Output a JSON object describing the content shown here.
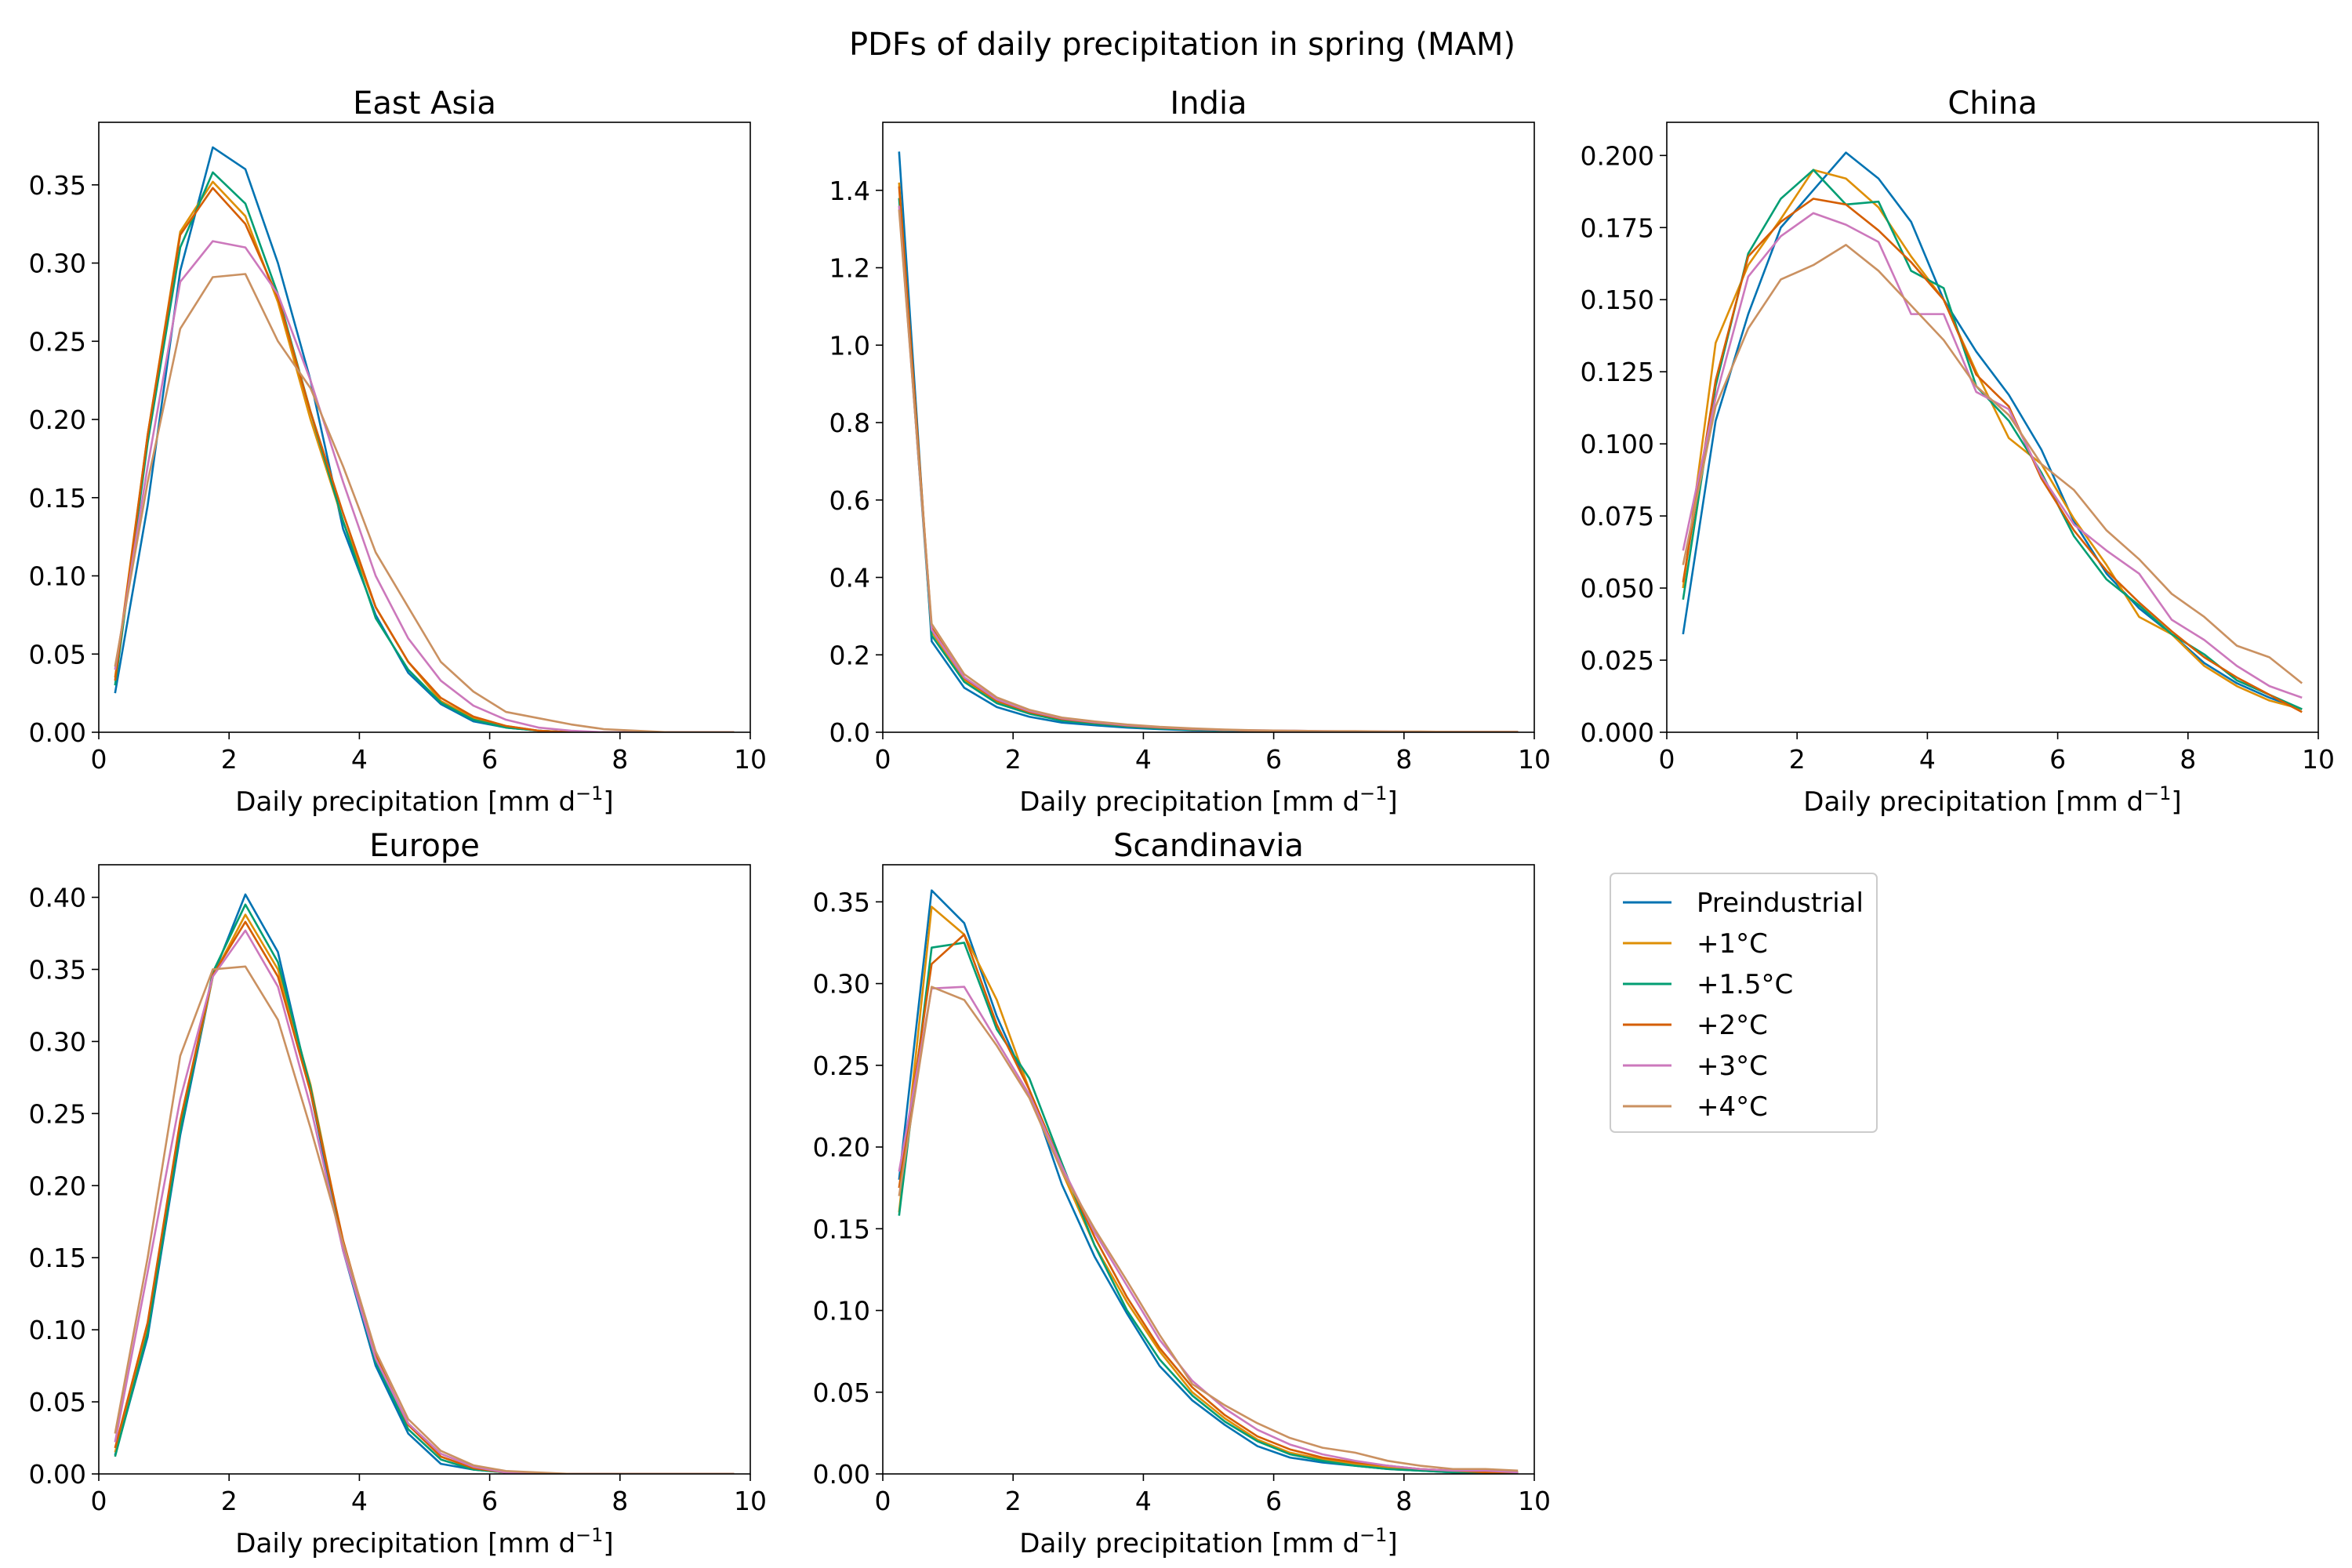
{
  "figure": {
    "title": "PDFs of daily precipitation in spring (MAM)"
  },
  "legend": {
    "placement": "empty-bottom-right-slot",
    "entries": [
      {
        "name": "Preindustrial",
        "color": "#0173b2"
      },
      {
        "name": "+1°C",
        "color": "#de8f05"
      },
      {
        "name": "+1.5°C",
        "color": "#029e73"
      },
      {
        "name": "+2°C",
        "color": "#d55e00"
      },
      {
        "name": "+3°C",
        "color": "#cc78bc"
      },
      {
        "name": "+4°C",
        "color": "#ca9161"
      }
    ]
  },
  "chart_data": [
    {
      "type": "line",
      "title": "East Asia",
      "xlabel": "Daily precipitation [mm d",
      "xlabel_sup": "−1",
      "xlabel_end": "]",
      "ylabel": "",
      "xlim": [
        0,
        10
      ],
      "ylim": [
        0,
        0.39
      ],
      "xticks": [
        "0",
        "2",
        "4",
        "6",
        "8",
        "10"
      ],
      "xtick_values": [
        0,
        2,
        4,
        6,
        8,
        10
      ],
      "yticks": [
        "0.00",
        "0.05",
        "0.10",
        "0.15",
        "0.20",
        "0.25",
        "0.30",
        "0.35"
      ],
      "ytick_values": [
        0,
        0.05,
        0.1,
        0.15,
        0.2,
        0.25,
        0.3,
        0.35
      ],
      "grid": false,
      "x": [
        0.25,
        0.75,
        1.25,
        1.75,
        2.25,
        2.75,
        3.25,
        3.75,
        4.25,
        4.75,
        5.25,
        5.75,
        6.25,
        6.75,
        7.25,
        7.75,
        8.25,
        8.75,
        9.25,
        9.75
      ],
      "series": [
        {
          "name": "Preindustrial",
          "values": [
            0.025,
            0.145,
            0.295,
            0.374,
            0.36,
            0.3,
            0.225,
            0.13,
            0.075,
            0.038,
            0.018,
            0.007,
            0.003,
            0.001,
            0,
            0,
            0,
            0,
            0,
            0
          ]
        },
        {
          "name": "+1°C",
          "values": [
            0.035,
            0.19,
            0.32,
            0.352,
            0.33,
            0.275,
            0.2,
            0.135,
            0.08,
            0.045,
            0.02,
            0.009,
            0.004,
            0.001,
            0,
            0,
            0,
            0,
            0,
            0
          ]
        },
        {
          "name": "+1.5°C",
          "values": [
            0.03,
            0.185,
            0.31,
            0.358,
            0.338,
            0.28,
            0.205,
            0.135,
            0.073,
            0.04,
            0.019,
            0.008,
            0.003,
            0.001,
            0,
            0,
            0,
            0,
            0,
            0
          ]
        },
        {
          "name": "+2°C",
          "values": [
            0.033,
            0.19,
            0.318,
            0.348,
            0.325,
            0.278,
            0.205,
            0.14,
            0.08,
            0.045,
            0.022,
            0.01,
            0.004,
            0.001,
            0,
            0,
            0,
            0,
            0,
            0
          ]
        },
        {
          "name": "+3°C",
          "values": [
            0.04,
            0.17,
            0.288,
            0.314,
            0.31,
            0.28,
            0.225,
            0.16,
            0.1,
            0.06,
            0.033,
            0.017,
            0.008,
            0.003,
            0.001,
            0,
            0,
            0,
            0,
            0
          ]
        },
        {
          "name": "+4°C",
          "values": [
            0.042,
            0.16,
            0.258,
            0.291,
            0.293,
            0.25,
            0.22,
            0.17,
            0.115,
            0.08,
            0.045,
            0.026,
            0.013,
            0.009,
            0.005,
            0.002,
            0.001,
            0,
            0,
            0
          ]
        }
      ]
    },
    {
      "type": "line",
      "title": "India",
      "xlabel": "Daily precipitation [mm d",
      "xlabel_sup": "−1",
      "xlabel_end": "]",
      "ylabel": "",
      "xlim": [
        0,
        10
      ],
      "ylim": [
        0,
        1.5757
      ],
      "xticks": [
        "0",
        "2",
        "4",
        "6",
        "8",
        "10"
      ],
      "xtick_values": [
        0,
        2,
        4,
        6,
        8,
        10
      ],
      "yticks": [
        "0.0",
        "0.2",
        "0.4",
        "0.6",
        "0.8",
        "1.0",
        "1.2",
        "1.4"
      ],
      "ytick_values": [
        0,
        0.2,
        0.4,
        0.6,
        0.8,
        1.0,
        1.2,
        1.4
      ],
      "grid": false,
      "x": [
        0.25,
        0.75,
        1.25,
        1.75,
        2.25,
        2.75,
        3.25,
        3.75,
        4.25,
        4.75,
        5.25,
        5.75,
        6.25,
        6.75,
        7.25,
        7.75,
        8.25,
        8.75,
        9.25,
        9.75
      ],
      "series": [
        {
          "name": "Preindustrial",
          "values": [
            1.5,
            0.235,
            0.115,
            0.065,
            0.04,
            0.025,
            0.018,
            0.012,
            0.008,
            0.005,
            0.004,
            0.003,
            0.002,
            0.002,
            0.001,
            0.001,
            0.001,
            0.001,
            0.001,
            0.001
          ]
        },
        {
          "name": "+1°C",
          "values": [
            1.42,
            0.26,
            0.135,
            0.078,
            0.05,
            0.032,
            0.024,
            0.016,
            0.011,
            0.007,
            0.005,
            0.004,
            0.003,
            0.002,
            0.002,
            0.001,
            0.001,
            0.001,
            0.001,
            0.001
          ]
        },
        {
          "name": "+1.5°C",
          "values": [
            1.38,
            0.25,
            0.13,
            0.075,
            0.048,
            0.03,
            0.022,
            0.015,
            0.01,
            0.007,
            0.005,
            0.004,
            0.003,
            0.002,
            0.002,
            0.001,
            0.001,
            0.001,
            0.001,
            0.001
          ]
        },
        {
          "name": "+2°C",
          "values": [
            1.41,
            0.27,
            0.14,
            0.082,
            0.052,
            0.034,
            0.025,
            0.017,
            0.012,
            0.008,
            0.006,
            0.004,
            0.003,
            0.002,
            0.002,
            0.001,
            0.001,
            0.001,
            0.001,
            0.001
          ]
        },
        {
          "name": "+3°C",
          "values": [
            1.36,
            0.265,
            0.142,
            0.085,
            0.055,
            0.036,
            0.026,
            0.018,
            0.013,
            0.009,
            0.006,
            0.005,
            0.004,
            0.003,
            0.002,
            0.002,
            0.001,
            0.001,
            0.001,
            0.001
          ]
        },
        {
          "name": "+4°C",
          "values": [
            1.35,
            0.28,
            0.15,
            0.09,
            0.058,
            0.038,
            0.028,
            0.02,
            0.014,
            0.01,
            0.007,
            0.005,
            0.004,
            0.003,
            0.003,
            0.002,
            0.002,
            0.001,
            0.001,
            0.001
          ]
        }
      ]
    },
    {
      "type": "line",
      "title": "China",
      "xlabel": "Daily precipitation [mm d",
      "xlabel_sup": "−1",
      "xlabel_end": "]",
      "ylabel": "",
      "xlim": [
        0,
        10
      ],
      "ylim": [
        0,
        0.2115
      ],
      "xticks": [
        "0",
        "2",
        "4",
        "6",
        "8",
        "10"
      ],
      "xtick_values": [
        0,
        2,
        4,
        6,
        8,
        10
      ],
      "yticks": [
        "0.000",
        "0.025",
        "0.050",
        "0.075",
        "0.100",
        "0.125",
        "0.150",
        "0.175",
        "0.200"
      ],
      "ytick_values": [
        0,
        0.025,
        0.05,
        0.075,
        0.1,
        0.125,
        0.15,
        0.175,
        0.2
      ],
      "grid": false,
      "x": [
        0.25,
        0.75,
        1.25,
        1.75,
        2.25,
        2.75,
        3.25,
        3.75,
        4.25,
        4.75,
        5.25,
        5.75,
        6.25,
        6.75,
        7.25,
        7.75,
        8.25,
        8.75,
        9.25,
        9.75
      ],
      "series": [
        {
          "name": "Preindustrial",
          "values": [
            0.034,
            0.108,
            0.145,
            0.175,
            0.188,
            0.201,
            0.192,
            0.177,
            0.15,
            0.132,
            0.117,
            0.098,
            0.073,
            0.055,
            0.043,
            0.034,
            0.024,
            0.017,
            0.012,
            0.008
          ]
        },
        {
          "name": "+1°C",
          "values": [
            0.05,
            0.135,
            0.162,
            0.178,
            0.195,
            0.192,
            0.182,
            0.165,
            0.15,
            0.125,
            0.102,
            0.093,
            0.074,
            0.058,
            0.04,
            0.034,
            0.023,
            0.016,
            0.011,
            0.008
          ]
        },
        {
          "name": "+1.5°C",
          "values": [
            0.046,
            0.12,
            0.166,
            0.185,
            0.195,
            0.183,
            0.184,
            0.16,
            0.154,
            0.12,
            0.108,
            0.09,
            0.068,
            0.053,
            0.044,
            0.034,
            0.027,
            0.018,
            0.013,
            0.008
          ]
        },
        {
          "name": "+2°C",
          "values": [
            0.052,
            0.122,
            0.165,
            0.177,
            0.185,
            0.183,
            0.174,
            0.163,
            0.15,
            0.124,
            0.113,
            0.088,
            0.07,
            0.056,
            0.045,
            0.035,
            0.026,
            0.019,
            0.013,
            0.007
          ]
        },
        {
          "name": "+3°C",
          "values": [
            0.063,
            0.116,
            0.158,
            0.172,
            0.18,
            0.176,
            0.17,
            0.145,
            0.145,
            0.118,
            0.112,
            0.089,
            0.072,
            0.063,
            0.055,
            0.039,
            0.032,
            0.023,
            0.016,
            0.012
          ]
        },
        {
          "name": "+4°C",
          "values": [
            0.058,
            0.113,
            0.14,
            0.157,
            0.162,
            0.169,
            0.16,
            0.148,
            0.136,
            0.12,
            0.11,
            0.093,
            0.084,
            0.07,
            0.06,
            0.048,
            0.04,
            0.03,
            0.026,
            0.017
          ]
        }
      ]
    },
    {
      "type": "line",
      "title": "Europe",
      "xlabel": "Daily precipitation [mm d",
      "xlabel_sup": "−1",
      "xlabel_end": "]",
      "ylabel": "",
      "xlim": [
        0,
        10
      ],
      "ylim": [
        0,
        0.4226
      ],
      "xticks": [
        "0",
        "2",
        "4",
        "6",
        "8",
        "10"
      ],
      "xtick_values": [
        0,
        2,
        4,
        6,
        8,
        10
      ],
      "yticks": [
        "0.00",
        "0.05",
        "0.10",
        "0.15",
        "0.20",
        "0.25",
        "0.30",
        "0.35",
        "0.40"
      ],
      "ytick_values": [
        0,
        0.05,
        0.1,
        0.15,
        0.2,
        0.25,
        0.3,
        0.35,
        0.4
      ],
      "grid": false,
      "x": [
        0.25,
        0.75,
        1.25,
        1.75,
        2.25,
        2.75,
        3.25,
        3.75,
        4.25,
        4.75,
        5.25,
        5.75,
        6.25,
        6.75,
        7.25,
        7.75,
        8.25,
        8.75,
        9.25,
        9.75
      ],
      "series": [
        {
          "name": "Preindustrial",
          "values": [
            0.013,
            0.095,
            0.235,
            0.345,
            0.402,
            0.362,
            0.265,
            0.155,
            0.075,
            0.028,
            0.007,
            0.003,
            0.001,
            0,
            0,
            0,
            0,
            0,
            0,
            0
          ]
        },
        {
          "name": "+1°C",
          "values": [
            0.015,
            0.1,
            0.24,
            0.345,
            0.388,
            0.35,
            0.27,
            0.16,
            0.08,
            0.035,
            0.012,
            0.004,
            0.001,
            0,
            0,
            0,
            0,
            0,
            0,
            0
          ]
        },
        {
          "name": "+1.5°C",
          "values": [
            0.012,
            0.098,
            0.238,
            0.348,
            0.395,
            0.355,
            0.268,
            0.158,
            0.078,
            0.031,
            0.01,
            0.003,
            0.001,
            0,
            0,
            0,
            0,
            0,
            0,
            0
          ]
        },
        {
          "name": "+2°C",
          "values": [
            0.018,
            0.105,
            0.245,
            0.346,
            0.383,
            0.345,
            0.265,
            0.162,
            0.082,
            0.034,
            0.012,
            0.004,
            0.001,
            0,
            0,
            0,
            0,
            0,
            0,
            0
          ]
        },
        {
          "name": "+3°C",
          "values": [
            0.022,
            0.14,
            0.26,
            0.345,
            0.377,
            0.338,
            0.255,
            0.155,
            0.08,
            0.035,
            0.014,
            0.005,
            0.001,
            0,
            0,
            0,
            0,
            0,
            0,
            0
          ]
        },
        {
          "name": "+4°C",
          "values": [
            0.028,
            0.15,
            0.29,
            0.35,
            0.352,
            0.315,
            0.24,
            0.16,
            0.085,
            0.038,
            0.016,
            0.006,
            0.002,
            0.001,
            0,
            0,
            0,
            0,
            0,
            0
          ]
        }
      ]
    },
    {
      "type": "line",
      "title": "Scandinavia",
      "xlabel": "Daily precipitation [mm d",
      "xlabel_sup": "−1",
      "xlabel_end": "]",
      "ylabel": "",
      "xlim": [
        0,
        10
      ],
      "ylim": [
        0,
        0.3727
      ],
      "xticks": [
        "0",
        "2",
        "4",
        "6",
        "8",
        "10"
      ],
      "xtick_values": [
        0,
        2,
        4,
        6,
        8,
        10
      ],
      "yticks": [
        "0.00",
        "0.05",
        "0.10",
        "0.15",
        "0.20",
        "0.25",
        "0.30",
        "0.35"
      ],
      "ytick_values": [
        0,
        0.05,
        0.1,
        0.15,
        0.2,
        0.25,
        0.3,
        0.35
      ],
      "grid": false,
      "x": [
        0.25,
        0.75,
        1.25,
        1.75,
        2.25,
        2.75,
        3.25,
        3.75,
        4.25,
        4.75,
        5.25,
        5.75,
        6.25,
        6.75,
        7.25,
        7.75,
        8.25,
        8.75,
        9.25,
        9.75
      ],
      "series": [
        {
          "name": "Preindustrial",
          "values": [
            0.18,
            0.357,
            0.337,
            0.28,
            0.235,
            0.177,
            0.133,
            0.098,
            0.066,
            0.045,
            0.03,
            0.017,
            0.01,
            0.007,
            0.005,
            0.003,
            0.002,
            0.001,
            0.001,
            0.001
          ]
        },
        {
          "name": "+1°C",
          "values": [
            0.16,
            0.347,
            0.33,
            0.29,
            0.235,
            0.185,
            0.14,
            0.105,
            0.075,
            0.05,
            0.034,
            0.021,
            0.013,
            0.009,
            0.006,
            0.004,
            0.003,
            0.002,
            0.001,
            0.001
          ]
        },
        {
          "name": "+1.5°C",
          "values": [
            0.158,
            0.322,
            0.325,
            0.272,
            0.242,
            0.19,
            0.14,
            0.1,
            0.07,
            0.048,
            0.032,
            0.02,
            0.012,
            0.008,
            0.005,
            0.003,
            0.002,
            0.001,
            0.001,
            0.001
          ]
        },
        {
          "name": "+2°C",
          "values": [
            0.175,
            0.312,
            0.33,
            0.275,
            0.235,
            0.188,
            0.145,
            0.108,
            0.077,
            0.053,
            0.036,
            0.023,
            0.015,
            0.01,
            0.007,
            0.005,
            0.003,
            0.002,
            0.001,
            0.001
          ]
        },
        {
          "name": "+3°C",
          "values": [
            0.185,
            0.297,
            0.298,
            0.265,
            0.232,
            0.188,
            0.148,
            0.115,
            0.082,
            0.057,
            0.04,
            0.027,
            0.018,
            0.012,
            0.008,
            0.005,
            0.003,
            0.002,
            0.002,
            0.001
          ]
        },
        {
          "name": "+4°C",
          "values": [
            0.17,
            0.298,
            0.29,
            0.262,
            0.23,
            0.185,
            0.15,
            0.118,
            0.085,
            0.055,
            0.042,
            0.031,
            0.022,
            0.016,
            0.013,
            0.008,
            0.005,
            0.003,
            0.003,
            0.002
          ]
        }
      ]
    }
  ]
}
